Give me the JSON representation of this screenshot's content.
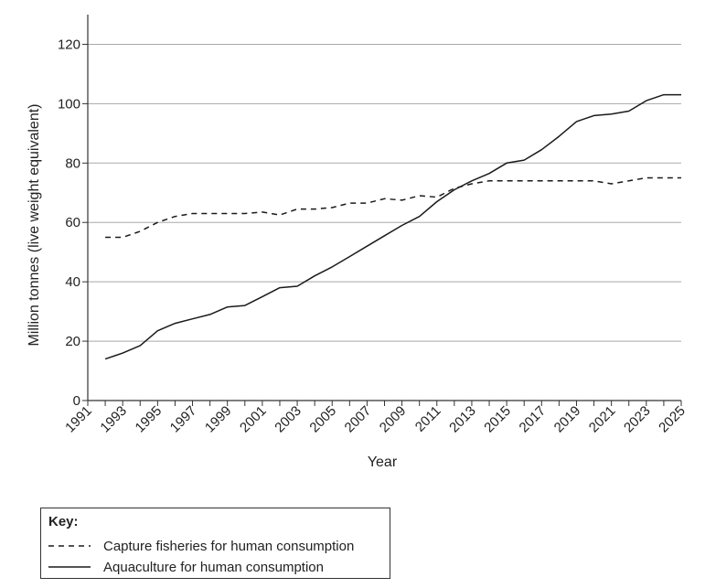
{
  "chart_data": {
    "type": "line",
    "title": "",
    "xlabel": "Year",
    "ylabel": "Million tonnes (live weight equivalent)",
    "xlim": [
      1991,
      2025
    ],
    "ylim": [
      0,
      130
    ],
    "x_ticks": [
      "1991",
      "1993",
      "1995",
      "1997",
      "1999",
      "2001",
      "2003",
      "2005",
      "2007",
      "2009",
      "2011",
      "2013",
      "2015",
      "2017",
      "2019",
      "2021",
      "2023",
      "2025"
    ],
    "y_ticks": [
      "0",
      "20",
      "40",
      "60",
      "80",
      "100",
      "120"
    ],
    "grid": "horizontal",
    "x": [
      1992,
      1993,
      1994,
      1995,
      1996,
      1997,
      1998,
      1999,
      2000,
      2001,
      2002,
      2003,
      2004,
      2005,
      2006,
      2007,
      2008,
      2009,
      2010,
      2011,
      2012,
      2013,
      2014,
      2015,
      2016,
      2017,
      2018,
      2019,
      2020,
      2021,
      2022,
      2023,
      2024,
      2025
    ],
    "series": [
      {
        "name": "Capture fisheries for human consumption",
        "style": "dashed",
        "values": [
          55,
          55,
          57,
          60,
          62,
          63,
          63,
          63,
          63,
          63.5,
          62.5,
          64.5,
          64.5,
          65,
          66.5,
          66.5,
          68,
          67.5,
          69,
          68.5,
          71.5,
          73,
          74,
          74,
          74,
          74,
          74,
          74,
          74,
          73,
          74,
          75,
          75,
          75
        ]
      },
      {
        "name": "Aquaculture for human consumption",
        "style": "solid",
        "values": [
          14,
          16,
          18.5,
          23.5,
          26,
          27.5,
          29,
          31.5,
          32,
          35,
          38,
          38.5,
          42,
          45,
          48.5,
          52,
          55.5,
          59,
          62,
          67,
          71,
          74,
          76.5,
          80,
          81,
          84.5,
          89,
          94,
          96,
          96.5,
          97.5,
          101,
          103,
          103
        ]
      }
    ]
  },
  "legend": {
    "title": "Key:",
    "items": [
      {
        "label": "Capture fisheries for human consumption",
        "style": "dashed"
      },
      {
        "label": "Aquaculture for human consumption",
        "style": "solid"
      }
    ]
  },
  "colors": {
    "line": "#1a1a1a",
    "grid": "#a8a8a8",
    "axis": "#333333"
  }
}
